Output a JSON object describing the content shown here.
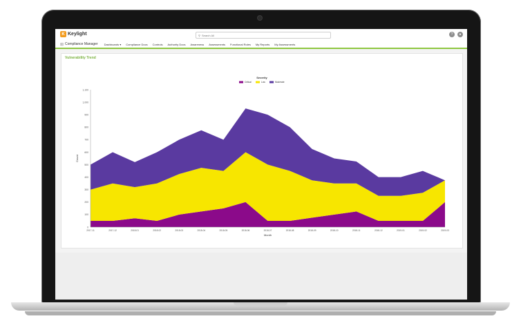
{
  "app": {
    "logo_mark": "K",
    "logo_text": "Keylight",
    "app_name": "Compliance Manager",
    "search_placeholder": "Search All",
    "search_icon": "search-icon",
    "help_icon": "help-icon",
    "user_icon": "user-icon",
    "grid_icon": "grid-icon"
  },
  "nav": {
    "items": [
      "Dashboards ▾",
      "Compliance Docs",
      "Controls",
      "Authority Docs",
      "Awareness",
      "Assessments",
      "Functional Roles",
      "My Reports",
      "My Assessments"
    ]
  },
  "panel": {
    "title": "Vulnerability Trend"
  },
  "colors": {
    "accent": "#8dc63f",
    "critical": "#8b0a8a",
    "low": "#f7e600",
    "moderate": "#5a3aa0"
  },
  "chart_data": {
    "type": "area",
    "stacked": true,
    "legend_title": "Severity",
    "legend_placement": "top-center",
    "xlabel": "Month",
    "ylabel": "Count",
    "ylim": [
      0,
      1100
    ],
    "y_ticks": [
      0,
      100,
      200,
      300,
      400,
      500,
      600,
      700,
      800,
      900,
      1000,
      1100
    ],
    "grid": false,
    "categories": [
      "2017-11",
      "2017-12",
      "2018-01",
      "2018-02",
      "2018-03",
      "2018-04",
      "2018-05",
      "2018-06",
      "2018-07",
      "2018-08",
      "2018-09",
      "2018-10",
      "2018-11",
      "2018-12",
      "2019-01",
      "2019-02",
      "2019-03"
    ],
    "x_tick_labels": [
      "2017-11",
      "2017-12",
      "2018-01",
      "2018-02",
      "2018-03",
      "2018-04",
      "2018-05",
      "2018-06",
      "2018-07",
      "2018-08",
      "2018-09",
      "2018-10",
      "2018-11",
      "2018-12",
      "2019-01",
      "2019-02",
      "2019-03"
    ],
    "series": [
      {
        "name": "Critical",
        "values": [
          50,
          50,
          70,
          50,
          100,
          125,
          150,
          200,
          50,
          50,
          75,
          100,
          125,
          50,
          50,
          50,
          200
        ]
      },
      {
        "name": "Low",
        "values": [
          250,
          300,
          250,
          300,
          325,
          350,
          300,
          400,
          450,
          400,
          300,
          250,
          225,
          200,
          200,
          225,
          175
        ]
      },
      {
        "name": "Moderate",
        "values": [
          200,
          250,
          200,
          250,
          275,
          300,
          250,
          350,
          400,
          350,
          250,
          200,
          175,
          150,
          150,
          175,
          0
        ]
      }
    ]
  }
}
